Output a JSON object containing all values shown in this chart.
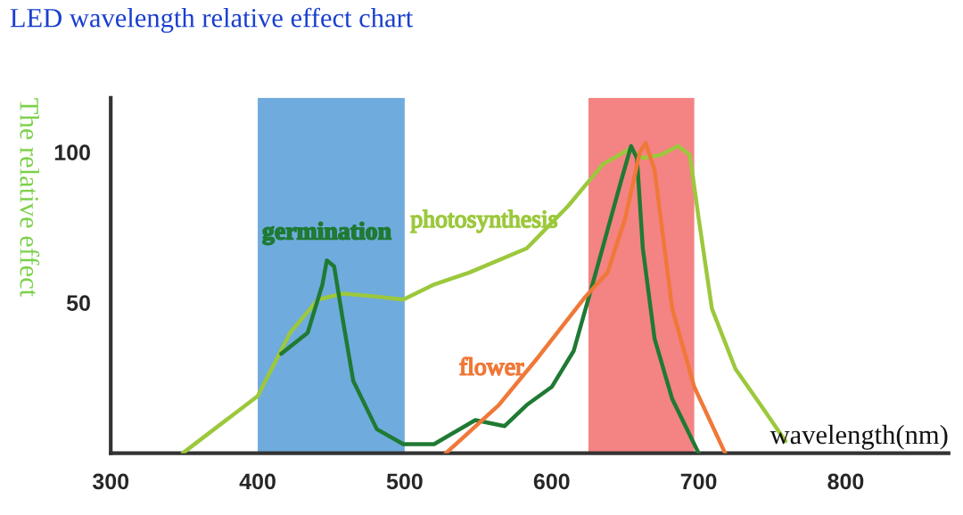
{
  "chart_data": {
    "type": "line",
    "title": "LED wavelength relative effect chart",
    "xlabel": "wavelength(nm)",
    "ylabel": "The relative effect",
    "xlim": [
      300,
      870
    ],
    "xticks": [
      300,
      400,
      500,
      600,
      700,
      800
    ],
    "ylim": [
      0,
      118
    ],
    "yticks": [
      50,
      100
    ],
    "grid": false,
    "legend": false,
    "marker": "none",
    "bands": [
      {
        "axis": "x",
        "from": 400,
        "to": 500,
        "color": "#3f8fd2"
      },
      {
        "axis": "x",
        "from": 625,
        "to": 697,
        "color": "#f05a5a"
      }
    ],
    "series": [
      {
        "name": "photosynthesis",
        "color": "#9cc83c",
        "x": [
          349,
          400,
          422,
          441,
          458,
          481,
          499,
          520,
          544,
          583,
          611,
          635,
          653,
          662,
          674,
          686,
          694,
          700,
          709,
          725,
          745,
          759
        ],
        "values": [
          0,
          19,
          40,
          51,
          53,
          52,
          51,
          56,
          60,
          68,
          82,
          96,
          101,
          98,
          99,
          102,
          99,
          78,
          48,
          28,
          14,
          4
        ]
      },
      {
        "name": "germination",
        "color": "#1f7a33",
        "x": [
          416,
          434,
          444,
          447,
          452,
          458,
          465,
          481,
          499,
          520,
          548,
          568,
          583,
          600,
          615,
          630,
          647,
          654,
          658,
          662,
          670,
          682,
          700
        ],
        "values": [
          33,
          40,
          56,
          64,
          62,
          44,
          24,
          8,
          3,
          3,
          11,
          9,
          16,
          22,
          34,
          60,
          90,
          102,
          98,
          68,
          38,
          18,
          0
        ]
      },
      {
        "name": "flower",
        "color": "#f07838",
        "x": [
          528,
          564,
          591,
          623,
          638,
          650,
          660,
          664,
          670,
          682,
          697,
          718
        ],
        "values": [
          0,
          16,
          32,
          52,
          60,
          78,
          100,
          103,
          94,
          48,
          22,
          0
        ]
      }
    ]
  }
}
